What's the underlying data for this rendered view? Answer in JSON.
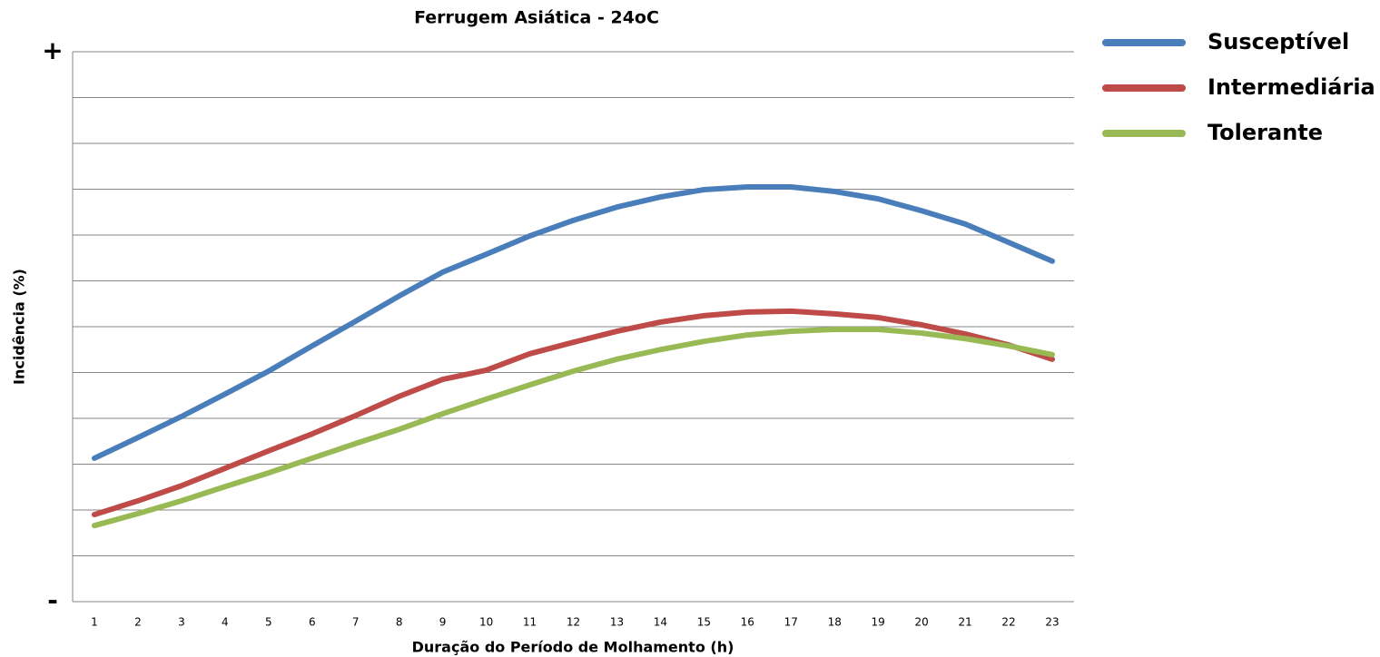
{
  "chart_data": {
    "type": "line",
    "title": "Ferrugem Asiática - 24oC",
    "x_label": "Duração do Período de Molhamento (h)",
    "y_label": "Incidência (%)",
    "x": [
      1,
      2,
      3,
      4,
      5,
      6,
      7,
      8,
      9,
      10,
      11,
      12,
      13,
      14,
      15,
      16,
      17,
      18,
      19,
      20,
      21,
      22,
      23
    ],
    "xlim": [
      0.5,
      23.5
    ],
    "ylim": [
      0,
      12
    ],
    "yticks": [
      {
        "value": 0,
        "label": "-"
      },
      {
        "value": 12,
        "label": "+"
      }
    ],
    "ygrid": [
      1,
      2,
      3,
      4,
      5,
      6,
      7,
      8,
      9,
      10,
      11,
      12
    ],
    "grid": true,
    "legend": "right",
    "series": [
      {
        "name": "Susceptível",
        "color": "#4a7ebb",
        "values": [
          3.13,
          3.58,
          4.04,
          4.53,
          5.03,
          5.58,
          6.12,
          6.67,
          7.19,
          7.58,
          7.98,
          8.32,
          8.61,
          8.83,
          8.99,
          9.05,
          9.05,
          8.95,
          8.79,
          8.53,
          8.24,
          7.84,
          7.43
        ]
      },
      {
        "name": "Intermediária",
        "color": "#be4b48",
        "values": [
          1.9,
          2.2,
          2.53,
          2.91,
          3.29,
          3.66,
          4.06,
          4.48,
          4.85,
          5.05,
          5.41,
          5.66,
          5.9,
          6.1,
          6.24,
          6.32,
          6.34,
          6.28,
          6.2,
          6.04,
          5.84,
          5.6,
          5.29
        ]
      },
      {
        "name": "Tolerante",
        "color": "#98b954",
        "values": [
          1.66,
          1.92,
          2.2,
          2.51,
          2.81,
          3.13,
          3.45,
          3.76,
          4.1,
          4.42,
          4.73,
          5.03,
          5.29,
          5.5,
          5.68,
          5.82,
          5.9,
          5.94,
          5.94,
          5.86,
          5.74,
          5.58,
          5.39
        ]
      }
    ]
  }
}
